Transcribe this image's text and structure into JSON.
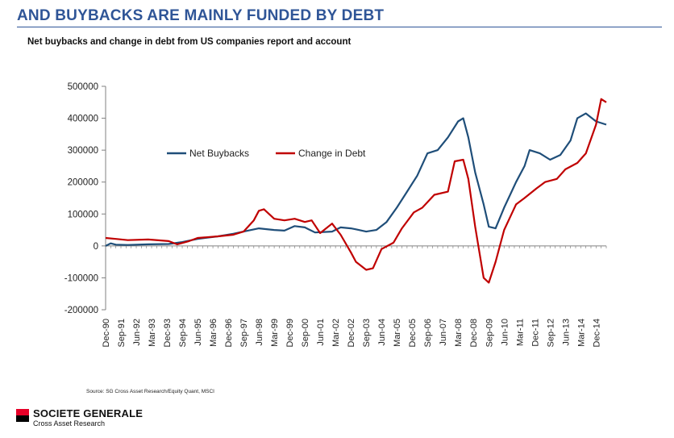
{
  "header": {
    "title": "AND BUYBACKS ARE MAINLY FUNDED BY DEBT",
    "subtitle": "Net buybacks and change in debt from US companies report and account"
  },
  "footer": {
    "source": "Source: SG Cross Asset Research/Equity Quant, MSCI",
    "brand_name": "SOCIETE GENERALE",
    "brand_sub": "Cross Asset Research"
  },
  "colors": {
    "title": "#2f5597",
    "net_buybacks": "#1f4e79",
    "change_in_debt": "#c00000",
    "logo_red": "#e60028"
  },
  "chart_data": {
    "type": "line",
    "title": "",
    "xlabel": "",
    "ylabel": "",
    "ylim": [
      -200000,
      500000
    ],
    "yticks": [
      500000,
      400000,
      300000,
      200000,
      100000,
      0,
      -100000,
      -200000
    ],
    "ytick_labels": [
      "500000",
      "400000",
      "300000",
      "200000",
      "100000",
      "0",
      "-100000",
      "-200000"
    ],
    "xrange": [
      "1990-12",
      "2015-06"
    ],
    "xtick_labels": [
      "Dec-90",
      "Sep-91",
      "Jun-92",
      "Mar-93",
      "Dec-93",
      "Sep-94",
      "Jun-95",
      "Mar-96",
      "Dec-96",
      "Sep-97",
      "Jun-98",
      "Mar-99",
      "Dec-99",
      "Sep-00",
      "Jun-01",
      "Mar-02",
      "Dec-02",
      "Sep-03",
      "Jun-04",
      "Mar-05",
      "Dec-05",
      "Sep-06",
      "Jun-07",
      "Mar-08",
      "Dec-08",
      "Sep-09",
      "Jun-10",
      "Mar-11",
      "Dec-11",
      "Sep-12",
      "Jun-13",
      "Mar-14",
      "Dec-14"
    ],
    "grid": false,
    "legend": "inside-top-left",
    "series": [
      {
        "name": "Net Buybacks",
        "color": "#1f4e79",
        "x": [
          "1990-12",
          "1991-03",
          "1991-06",
          "1992-01",
          "1993-01",
          "1994-01",
          "1994-09",
          "1995-06",
          "1996-06",
          "1997-03",
          "1997-09",
          "1998-06",
          "1999-03",
          "1999-09",
          "2000-03",
          "2000-09",
          "2001-03",
          "2002-01",
          "2002-06",
          "2002-12",
          "2003-03",
          "2003-09",
          "2004-03",
          "2004-09",
          "2005-03",
          "2005-09",
          "2006-03",
          "2006-09",
          "2007-03",
          "2007-09",
          "2008-03",
          "2008-06",
          "2008-09",
          "2009-01",
          "2009-06",
          "2009-09",
          "2010-01",
          "2010-06",
          "2011-01",
          "2011-06",
          "2011-09",
          "2012-03",
          "2012-09",
          "2013-03",
          "2013-09",
          "2014-01",
          "2014-06",
          "2014-12",
          "2015-03",
          "2015-06"
        ],
        "values": [
          0,
          8000,
          4000,
          3000,
          5000,
          6000,
          12000,
          22000,
          30000,
          38000,
          45000,
          55000,
          50000,
          48000,
          62000,
          58000,
          42000,
          45000,
          58000,
          55000,
          52000,
          45000,
          50000,
          75000,
          120000,
          170000,
          220000,
          290000,
          300000,
          340000,
          390000,
          400000,
          340000,
          230000,
          130000,
          60000,
          55000,
          120000,
          200000,
          250000,
          300000,
          290000,
          270000,
          285000,
          330000,
          400000,
          415000,
          390000,
          385000,
          380000
        ]
      },
      {
        "name": "Change in Debt",
        "color": "#c00000",
        "x": [
          "1990-12",
          "1991-06",
          "1992-01",
          "1993-01",
          "1994-01",
          "1994-06",
          "1995-01",
          "1995-06",
          "1996-06",
          "1997-03",
          "1997-09",
          "1998-03",
          "1998-06",
          "1998-09",
          "1999-03",
          "1999-09",
          "2000-03",
          "2000-09",
          "2001-01",
          "2001-06",
          "2002-01",
          "2002-06",
          "2002-12",
          "2003-03",
          "2003-09",
          "2004-01",
          "2004-06",
          "2005-01",
          "2005-06",
          "2006-01",
          "2006-06",
          "2007-01",
          "2007-09",
          "2008-01",
          "2008-06",
          "2008-09",
          "2009-01",
          "2009-06",
          "2009-09",
          "2010-01",
          "2010-06",
          "2011-01",
          "2011-06",
          "2012-01",
          "2012-06",
          "2013-01",
          "2013-06",
          "2014-01",
          "2014-06",
          "2014-12",
          "2015-03",
          "2015-06"
        ],
        "values": [
          25000,
          22000,
          18000,
          20000,
          15000,
          5000,
          15000,
          25000,
          30000,
          35000,
          45000,
          80000,
          110000,
          115000,
          85000,
          80000,
          85000,
          75000,
          80000,
          40000,
          70000,
          35000,
          -20000,
          -50000,
          -75000,
          -70000,
          -10000,
          10000,
          55000,
          105000,
          120000,
          160000,
          170000,
          265000,
          270000,
          210000,
          60000,
          -100000,
          -115000,
          -50000,
          50000,
          130000,
          150000,
          180000,
          200000,
          210000,
          240000,
          260000,
          290000,
          380000,
          460000,
          450000
        ]
      }
    ]
  }
}
